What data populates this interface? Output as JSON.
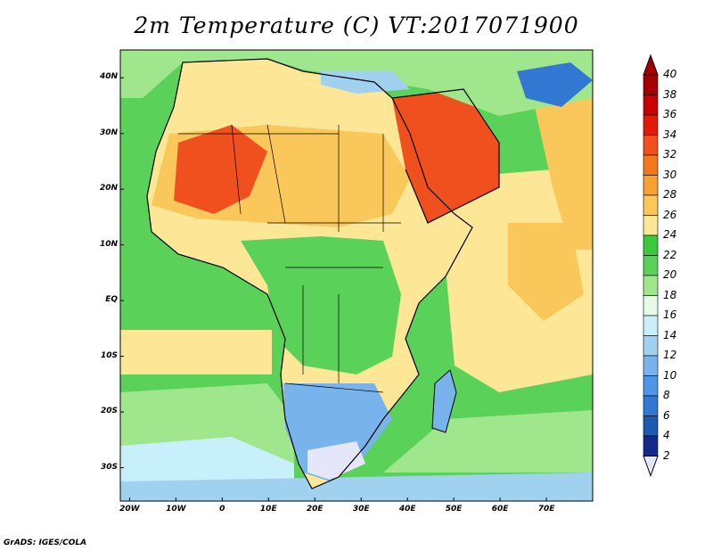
{
  "title": "2m Temperature (C) VT:2017071900",
  "credit": "GrADS: IGES/COLA",
  "map": {
    "lon_range": [
      -22,
      80
    ],
    "lat_range": [
      -36,
      45
    ],
    "lat_ticks": [
      {
        "value": 40,
        "label": "40N"
      },
      {
        "value": 30,
        "label": "30N"
      },
      {
        "value": 20,
        "label": "20N"
      },
      {
        "value": 10,
        "label": "10N"
      },
      {
        "value": 0,
        "label": "EQ"
      },
      {
        "value": -10,
        "label": "10S"
      },
      {
        "value": -20,
        "label": "20S"
      },
      {
        "value": -30,
        "label": "30S"
      }
    ],
    "lon_ticks": [
      {
        "value": -20,
        "label": "20W"
      },
      {
        "value": -10,
        "label": "10W"
      },
      {
        "value": 0,
        "label": "0"
      },
      {
        "value": 10,
        "label": "10E"
      },
      {
        "value": 20,
        "label": "20E"
      },
      {
        "value": 30,
        "label": "30E"
      },
      {
        "value": 40,
        "label": "40E"
      },
      {
        "value": 50,
        "label": "50E"
      },
      {
        "value": 60,
        "label": "60E"
      },
      {
        "value": 70,
        "label": "70E"
      }
    ]
  },
  "colorbar": {
    "levels": [
      "40",
      "38",
      "36",
      "34",
      "32",
      "30",
      "28",
      "26",
      "24",
      "22",
      "20",
      "18",
      "16",
      "14",
      "12",
      "10",
      "8",
      "6",
      "4",
      "2"
    ],
    "colors": [
      "#a50000",
      "#c80000",
      "#e11a0a",
      "#f0501e",
      "#f5781e",
      "#f8a032",
      "#fac85a",
      "#fde696",
      "#3cc83c",
      "#5ad25a",
      "#a0e68c",
      "#e6fae6",
      "#c8f0fa",
      "#a0d2f0",
      "#78b4eb",
      "#5096e6",
      "#3278d2",
      "#1e5ab4",
      "#14288c",
      "#e6e6fa"
    ],
    "top_arrow_color": "#a50000",
    "bottom_arrow_color": "#e6e6fa"
  }
}
